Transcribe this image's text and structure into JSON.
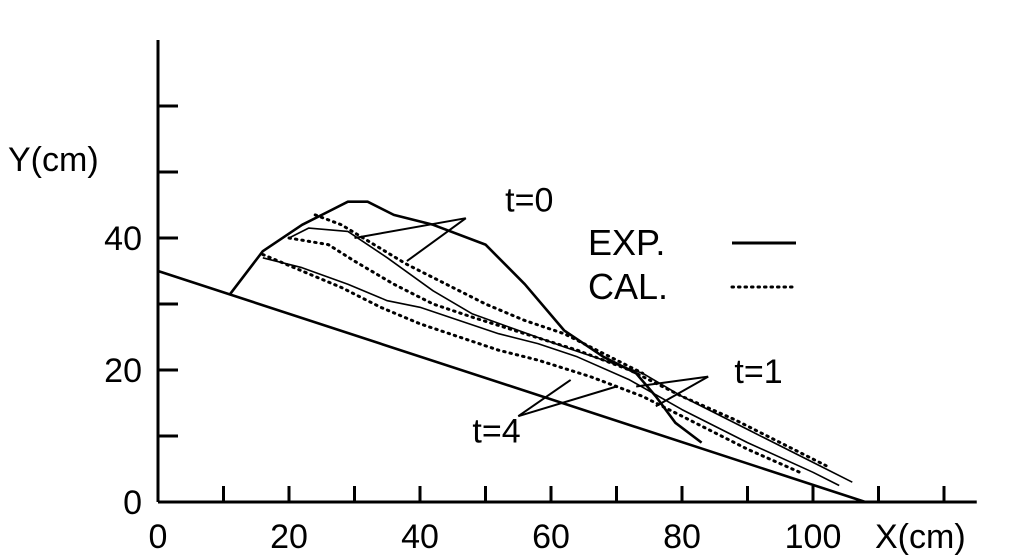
{
  "chart_data": {
    "type": "line",
    "title": "",
    "xlabel": "X(cm)",
    "ylabel": "Y(cm)",
    "xlim": [
      0,
      125
    ],
    "ylim": [
      0,
      70
    ],
    "x_ticks": [
      0,
      20,
      40,
      60,
      80,
      100
    ],
    "x_minor_ticks": [
      10,
      30,
      50,
      70,
      90,
      110,
      120
    ],
    "y_ticks": [
      0,
      20,
      40
    ],
    "y_minor_ticks": [
      10,
      30,
      50,
      60
    ],
    "grid": false,
    "legend_position": "top-right",
    "legend": [
      {
        "label": "EXP.",
        "style": "solid"
      },
      {
        "label": "CAL.",
        "style": "dotted"
      }
    ],
    "annotations": [
      {
        "text": "t=0",
        "x": 53,
        "y": 44
      },
      {
        "text": "t=1",
        "x": 88,
        "y": 18
      },
      {
        "text": "t=4",
        "x": 48,
        "y": 9
      }
    ],
    "series": [
      {
        "name": "",
        "style": "solid",
        "points": [
          [
            0,
            35
          ],
          [
            108,
            0
          ]
        ]
      },
      {
        "name": "t=0",
        "style": "solid",
        "points": [
          [
            11,
            31.5
          ],
          [
            16,
            38
          ],
          [
            22,
            42
          ],
          [
            26,
            44
          ],
          [
            29,
            45.5
          ],
          [
            32,
            45.5
          ],
          [
            36,
            43.5
          ],
          [
            42,
            42
          ],
          [
            50,
            39
          ],
          [
            56,
            33
          ],
          [
            62,
            26
          ],
          [
            68,
            22
          ],
          [
            73,
            19.5
          ],
          [
            76,
            16
          ],
          [
            79,
            12
          ],
          [
            83,
            9
          ]
        ]
      },
      {
        "name": "t=1",
        "style": "solid",
        "points": [
          [
            20,
            40
          ],
          [
            23,
            41.5
          ],
          [
            29,
            41
          ],
          [
            35,
            37
          ],
          [
            42,
            32
          ],
          [
            48,
            28.5
          ],
          [
            55,
            26
          ],
          [
            62,
            23.5
          ],
          [
            68,
            21.5
          ],
          [
            74,
            19.5
          ],
          [
            80,
            16
          ],
          [
            90,
            11
          ],
          [
            100,
            6
          ],
          [
            106,
            3
          ]
        ]
      },
      {
        "name": "t=4",
        "style": "solid",
        "points": [
          [
            16,
            37
          ],
          [
            22,
            35.5
          ],
          [
            29,
            33
          ],
          [
            35,
            30.5
          ],
          [
            40,
            29.5
          ],
          [
            46,
            27.5
          ],
          [
            52,
            25.5
          ],
          [
            58,
            24
          ],
          [
            64,
            22
          ],
          [
            72,
            18.5
          ],
          [
            80,
            14
          ],
          [
            90,
            9
          ],
          [
            100,
            4.5
          ],
          [
            104,
            2.5
          ]
        ]
      },
      {
        "name": "t=0",
        "style": "dotted",
        "points": [
          [
            24,
            43.5
          ],
          [
            28,
            42
          ],
          [
            33,
            39
          ],
          [
            38,
            36
          ],
          [
            44,
            33
          ],
          [
            50,
            30
          ],
          [
            56,
            27.5
          ],
          [
            62,
            25.5
          ],
          [
            68,
            22.5
          ],
          [
            74,
            19.5
          ]
        ]
      },
      {
        "name": "t=1",
        "style": "dotted",
        "points": [
          [
            20,
            40
          ],
          [
            26,
            39
          ],
          [
            30,
            36.5
          ],
          [
            36,
            33
          ],
          [
            42,
            30
          ],
          [
            48,
            28
          ],
          [
            56,
            25.5
          ],
          [
            64,
            23
          ],
          [
            72,
            20
          ],
          [
            80,
            16
          ],
          [
            88,
            12.5
          ],
          [
            96,
            8.5
          ],
          [
            102,
            5.5
          ]
        ]
      },
      {
        "name": "t=4",
        "style": "dotted",
        "points": [
          [
            16,
            37.5
          ],
          [
            22,
            35
          ],
          [
            28,
            32.5
          ],
          [
            34,
            29.5
          ],
          [
            40,
            27
          ],
          [
            46,
            25
          ],
          [
            52,
            23
          ],
          [
            58,
            21.5
          ],
          [
            66,
            19
          ],
          [
            74,
            16
          ],
          [
            82,
            12
          ],
          [
            90,
            8
          ],
          [
            98,
            4.5
          ]
        ]
      }
    ]
  }
}
